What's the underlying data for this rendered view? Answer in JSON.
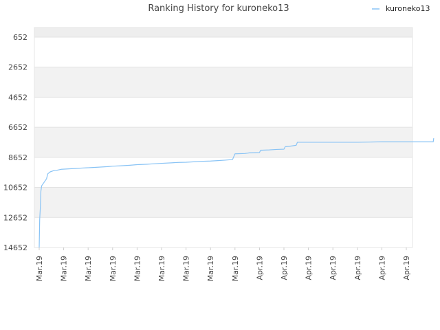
{
  "chart_data": {
    "type": "line",
    "title": "Ranking History for kuroneko13",
    "xlabel": "",
    "ylabel": "",
    "y_reversed": true,
    "ylim": [
      14652,
      14
    ],
    "grid": true,
    "legend_position": "top-right",
    "y_ticks": [
      "652",
      "2652",
      "4652",
      "6652",
      "8652",
      "10652",
      "12652",
      "14652"
    ],
    "x_ticks": [
      "Mar.19",
      "Mar.19",
      "Mar.19",
      "Mar.19",
      "Mar.19",
      "Mar.19",
      "Mar.19",
      "Mar.19",
      "Mar.19",
      "Apr.19",
      "Apr.19",
      "Apr.19",
      "Apr.19",
      "Apr.19",
      "Apr.19",
      "Apr.19"
    ],
    "series": [
      {
        "name": "kuroneko13",
        "color": "#88c3f5",
        "points": [
          [
            0.0,
            14652
          ],
          [
            0.02,
            12800
          ],
          [
            0.05,
            11900
          ],
          [
            0.07,
            10900
          ],
          [
            0.1,
            10550
          ],
          [
            0.3,
            10080
          ],
          [
            0.35,
            9750
          ],
          [
            0.45,
            9620
          ],
          [
            0.6,
            9530
          ],
          [
            0.7,
            9520
          ],
          [
            0.9,
            9450
          ],
          [
            1.2,
            9420
          ],
          [
            1.5,
            9390
          ],
          [
            1.8,
            9360
          ],
          [
            2.2,
            9330
          ],
          [
            2.5,
            9300
          ],
          [
            2.8,
            9270
          ],
          [
            3.0,
            9240
          ],
          [
            3.3,
            9220
          ],
          [
            3.7,
            9180
          ],
          [
            4.0,
            9140
          ],
          [
            4.4,
            9110
          ],
          [
            4.7,
            9080
          ],
          [
            5.0,
            9050
          ],
          [
            5.4,
            9020
          ],
          [
            5.7,
            8990
          ],
          [
            6.0,
            8980
          ],
          [
            6.3,
            8950
          ],
          [
            6.6,
            8920
          ],
          [
            7.0,
            8900
          ],
          [
            7.3,
            8870
          ],
          [
            7.6,
            8840
          ],
          [
            7.9,
            8800
          ],
          [
            8.0,
            8420
          ],
          [
            8.4,
            8400
          ],
          [
            8.6,
            8350
          ],
          [
            9.0,
            8330
          ],
          [
            9.05,
            8180
          ],
          [
            9.4,
            8160
          ],
          [
            9.7,
            8130
          ],
          [
            10.0,
            8110
          ],
          [
            10.05,
            7950
          ],
          [
            10.3,
            7900
          ],
          [
            10.5,
            7850
          ],
          [
            10.55,
            7650
          ],
          [
            11.0,
            7650
          ],
          [
            12.0,
            7650
          ],
          [
            13.0,
            7650
          ],
          [
            14.0,
            7620
          ],
          [
            15.0,
            7620
          ],
          [
            16.1,
            7620
          ],
          [
            16.12,
            7380
          ]
        ]
      }
    ]
  }
}
